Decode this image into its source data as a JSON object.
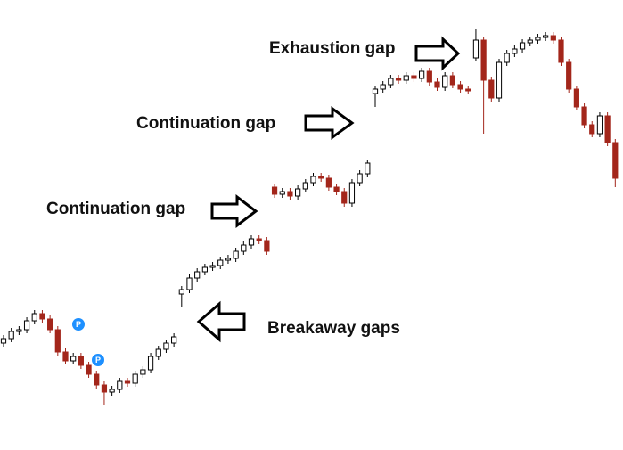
{
  "chart_data": {
    "type": "candlestick",
    "ylim": [
      0,
      505
    ],
    "up_color": "#ffffff",
    "down_color": "#a3261b",
    "open": [
      120,
      125,
      133,
      135,
      145,
      153,
      147,
      135,
      110,
      100,
      105,
      95,
      85,
      73,
      65,
      68,
      77,
      75,
      85,
      90,
      105,
      113,
      120,
      175,
      180,
      193,
      200,
      205,
      207,
      213,
      215,
      223,
      230,
      237,
      235,
      295,
      287,
      290,
      285,
      293,
      300,
      307,
      305,
      295,
      290,
      277,
      300,
      310,
      400,
      405,
      410,
      417,
      415,
      420,
      417,
      425,
      413,
      407,
      420,
      410,
      405,
      440,
      460,
      415,
      395,
      435,
      445,
      450,
      457,
      460,
      463,
      465,
      460,
      435,
      405,
      385,
      365,
      355,
      375,
      345
    ],
    "high": [
      129,
      137,
      139,
      149,
      157,
      157,
      151,
      139,
      114,
      109,
      109,
      99,
      89,
      77,
      72,
      81,
      81,
      89,
      94,
      109,
      117,
      124,
      131,
      184,
      197,
      204,
      209,
      211,
      217,
      219,
      227,
      234,
      241,
      241,
      239,
      299,
      294,
      294,
      297,
      304,
      311,
      311,
      309,
      299,
      294,
      304,
      314,
      326,
      409,
      414,
      421,
      421,
      424,
      424,
      429,
      429,
      417,
      424,
      424,
      414,
      409,
      472,
      464,
      419,
      439,
      449,
      454,
      461,
      464,
      467,
      469,
      469,
      464,
      439,
      409,
      389,
      369,
      379,
      379,
      349
    ],
    "low": [
      116,
      121,
      129,
      131,
      141,
      143,
      131,
      106,
      96,
      96,
      91,
      81,
      69,
      50,
      61,
      64,
      71,
      71,
      81,
      86,
      101,
      109,
      116,
      160,
      176,
      189,
      196,
      201,
      203,
      209,
      211,
      219,
      226,
      231,
      219,
      283,
      283,
      281,
      281,
      289,
      296,
      301,
      291,
      286,
      273,
      273,
      296,
      306,
      385,
      401,
      406,
      411,
      411,
      413,
      413,
      409,
      403,
      403,
      406,
      401,
      399,
      436,
      355,
      391,
      391,
      431,
      441,
      446,
      453,
      456,
      459,
      456,
      431,
      401,
      381,
      361,
      351,
      351,
      341,
      295
    ],
    "close": [
      125,
      133,
      135,
      145,
      153,
      147,
      135,
      110,
      100,
      105,
      95,
      85,
      73,
      65,
      68,
      77,
      75,
      85,
      90,
      105,
      113,
      120,
      127,
      180,
      193,
      200,
      205,
      207,
      213,
      215,
      223,
      230,
      237,
      235,
      223,
      287,
      290,
      285,
      293,
      300,
      307,
      305,
      295,
      290,
      277,
      300,
      310,
      322,
      405,
      410,
      417,
      415,
      420,
      417,
      425,
      413,
      407,
      420,
      410,
      405,
      403,
      460,
      415,
      395,
      435,
      445,
      450,
      457,
      460,
      463,
      465,
      460,
      435,
      405,
      385,
      365,
      355,
      375,
      345,
      305
    ],
    "annotations": [
      "Exhaustion gap",
      "Continuation gap",
      "Continuation gap",
      "Breakaway gaps"
    ],
    "markers": [
      "P",
      "P"
    ]
  }
}
